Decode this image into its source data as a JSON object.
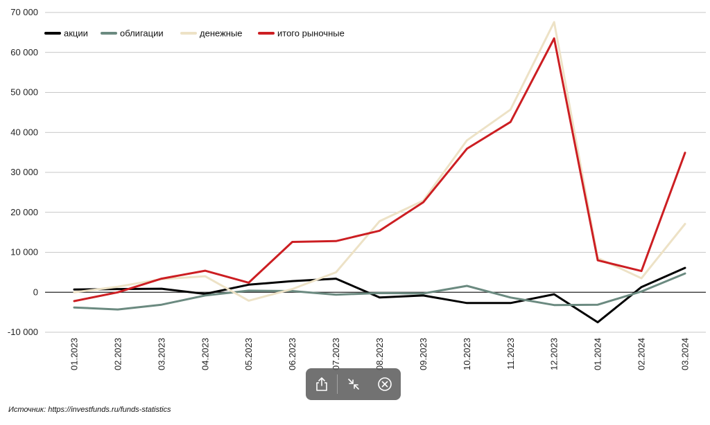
{
  "chart_data": {
    "type": "line",
    "title": "",
    "xlabel": "",
    "ylabel": "",
    "categories": [
      "01.2023",
      "02.2023",
      "03.2023",
      "04.2023",
      "05.2023",
      "06.2023",
      "07.2023",
      "08.2023",
      "09.2023",
      "10.2023",
      "11.2023",
      "12.2023",
      "01.2024",
      "02.2024",
      "03.2024"
    ],
    "ylim": [
      -10000,
      70000
    ],
    "yticks": [
      -10000,
      0,
      10000,
      20000,
      30000,
      40000,
      50000,
      60000,
      70000
    ],
    "ytick_labels": [
      "-10 000",
      "0",
      "10 000",
      "20 000",
      "30 000",
      "40 000",
      "50 000",
      "60 000",
      "70 000"
    ],
    "grid": "horizontal",
    "legend_position": "top-left",
    "series": [
      {
        "name": "акции",
        "color": "#000000",
        "values": [
          700,
          800,
          900,
          -400,
          1900,
          2800,
          3400,
          -1300,
          -800,
          -2700,
          -2700,
          -500,
          -7500,
          1300,
          6100
        ]
      },
      {
        "name": "облигации",
        "color": "#6b8a80",
        "values": [
          -3800,
          -4300,
          -3100,
          -800,
          400,
          300,
          -600,
          -200,
          -300,
          1600,
          -1300,
          -3200,
          -3100,
          200,
          4700
        ]
      },
      {
        "name": "денежные",
        "color": "#ede2c6",
        "values": [
          0,
          1400,
          3300,
          4000,
          -2100,
          800,
          5000,
          17800,
          22900,
          38000,
          45700,
          67600,
          8600,
          3500,
          17100
        ]
      },
      {
        "name": "итого рыночные",
        "color": "#cc1e22",
        "values": [
          -2200,
          0,
          3400,
          5400,
          2400,
          12600,
          12800,
          15400,
          22500,
          35900,
          42600,
          63500,
          8000,
          5300,
          34900
        ]
      }
    ]
  },
  "source_text": "Источник: https://investfunds.ru/funds-statistics",
  "toolbar": {
    "share_icon": "share-icon",
    "collapse_icon": "collapse-icon",
    "close_icon": "close-circle-icon"
  }
}
